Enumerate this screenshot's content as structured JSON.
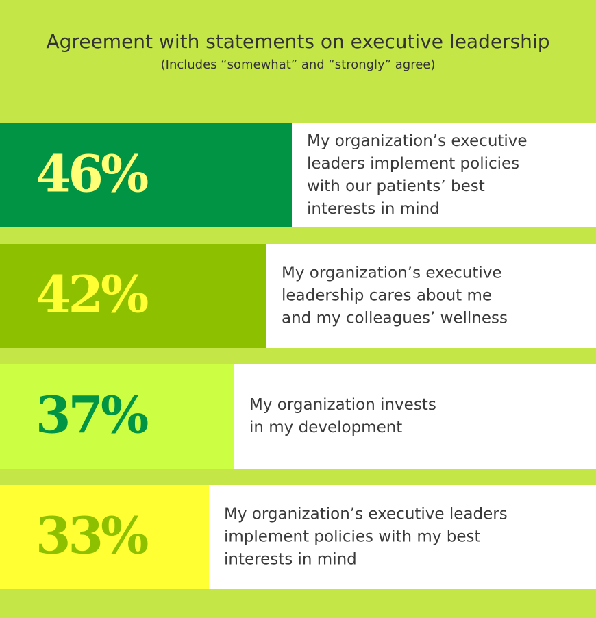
{
  "chart_data": {
    "type": "bar",
    "title": "Agreement with statements on executive leadership",
    "subtitle": "(Includes “somewhat” and “strongly” agree)",
    "unit": "%",
    "ylim": [
      0,
      100
    ],
    "categories": [
      "My organization’s executive\nleaders implement policies\nwith our patients’ best\ninterests in mind",
      "My organization’s executive\nleadership cares about me\nand my colleagues’ wellness",
      "My organization invests\nin my development",
      "My organization’s executive leaders\nimplement policies with my best\ninterests in mind"
    ],
    "values": [
      46,
      42,
      37,
      33
    ],
    "value_labels": [
      "46%",
      "42%",
      "37%",
      "33%"
    ],
    "bar_colors": [
      "#009444",
      "#8dc100",
      "#ccff44",
      "#ffff33"
    ],
    "label_colors": [
      "#ffff77",
      "#ffff33",
      "#009444",
      "#8dc100"
    ]
  },
  "colors": {
    "background": "#c4e747",
    "panel": "#ffffff",
    "text": "#333333"
  }
}
